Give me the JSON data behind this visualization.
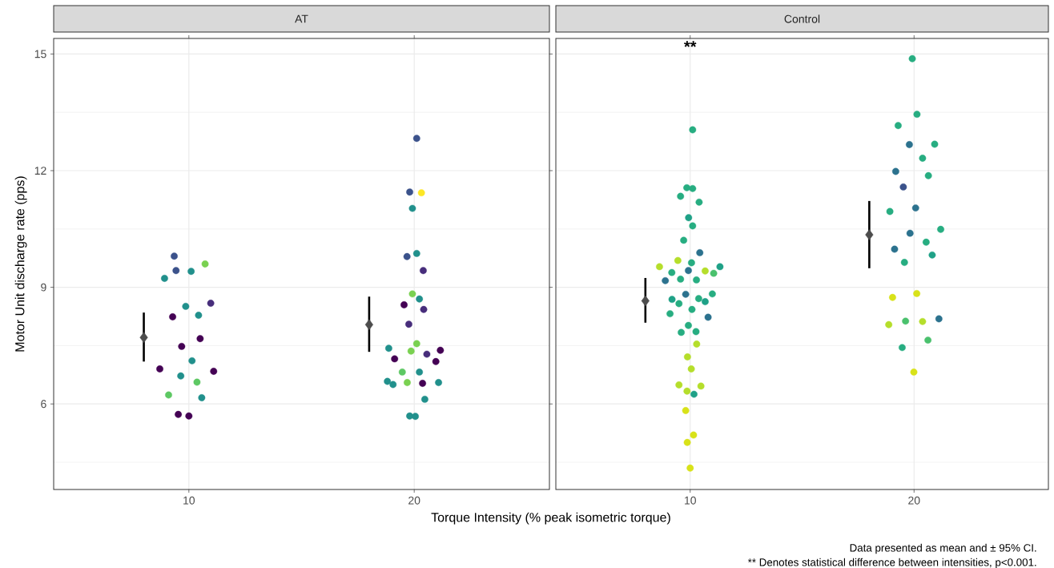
{
  "chart_data": [
    {
      "type": "scatter",
      "title": "AT",
      "ylabel": "Motor Unit discharge rate (pps)",
      "xlabel": "Torque Intensity (% peak isometric torque)",
      "xlim": [
        4,
        26
      ],
      "xticks": [
        10,
        20
      ],
      "ylim": [
        3.8,
        15.4
      ],
      "yticks": [
        6,
        9,
        12,
        15
      ],
      "grid": true,
      "series": [
        {
          "marker": "circle",
          "x": [
            9.35,
            9.43,
            8.92,
            10.1,
            10.72,
            9.86,
            10.97,
            9.28,
            10.43,
            10.5,
            9.68,
            10.14,
            8.71,
            11.1,
            9.64,
            10.36,
            9.1,
            10.57,
            9.53,
            10.0,
            20.11,
            19.8,
            20.32,
            19.92,
            20.11,
            19.68,
            20.4,
            19.92,
            20.23,
            19.55,
            20.42,
            19.76,
            20.11,
            18.87,
            19.86,
            21.16,
            20.56,
            19.13,
            20.96,
            19.47,
            20.23,
            18.81,
            19.06,
            19.69,
            20.37,
            21.08,
            20.47,
            19.8,
            20.05
          ],
          "values": [
            9.8,
            9.43,
            9.23,
            9.41,
            9.6,
            8.51,
            8.59,
            8.24,
            8.28,
            7.68,
            7.48,
            7.11,
            6.9,
            6.84,
            6.72,
            6.56,
            6.23,
            6.16,
            5.73,
            5.69,
            12.83,
            11.45,
            11.43,
            11.03,
            9.87,
            9.79,
            9.43,
            8.83,
            8.7,
            8.55,
            8.43,
            8.05,
            7.55,
            7.43,
            7.36,
            7.38,
            7.28,
            7.16,
            7.09,
            6.82,
            6.82,
            6.58,
            6.5,
            6.55,
            6.53,
            6.55,
            6.12,
            5.69,
            5.68
          ],
          "colors": [
            "#3b528b",
            "#3b528b",
            "#21908c",
            "#21908c",
            "#7ad151",
            "#21908c",
            "#472d7b",
            "#440154",
            "#21908c",
            "#440154",
            "#440154",
            "#21908c",
            "#440154",
            "#440154",
            "#21908c",
            "#5dc863",
            "#5dc863",
            "#21908c",
            "#440154",
            "#440154",
            "#3b528b",
            "#3b528b",
            "#fde725",
            "#21908c",
            "#21908c",
            "#3b528b",
            "#472d7b",
            "#7ad151",
            "#21908c",
            "#440154",
            "#472d7b",
            "#472d7b",
            "#7ad151",
            "#21908c",
            "#7ad151",
            "#440154",
            "#472d7b",
            "#440154",
            "#440154",
            "#5dc863",
            "#21908c",
            "#21908c",
            "#21908c",
            "#7ad151",
            "#440154",
            "#21908c",
            "#21908c",
            "#21908c",
            "#21908c"
          ]
        },
        {
          "x": [
            8,
            18
          ],
          "values": [
            7.71,
            8.04
          ],
          "marker": "diamond",
          "color": "#4d4d4d",
          "errors": [
            [
              7.09,
              8.35
            ],
            [
              7.34,
              8.76
            ]
          ]
        }
      ]
    },
    {
      "type": "scatter",
      "title": "Control",
      "xlim": [
        4,
        26
      ],
      "xticks": [
        10,
        20
      ],
      "ylim": [
        3.8,
        15.4
      ],
      "yticks": [
        6,
        9,
        12,
        15
      ],
      "grid": true,
      "tick_labels": "x",
      "annotations": [
        "**",
        "Data presented as mean and ± 95% CI.",
        "** Denotes statistical difference between intensities, p<0.001."
      ],
      "series": [
        {
          "marker": "circle",
          "x": [
            10.11,
            9.85,
            10.11,
            9.57,
            10.4,
            9.93,
            10.11,
            9.71,
            10.43,
            9.45,
            10.06,
            8.63,
            11.33,
            9.92,
            10.67,
            9.18,
            11.05,
            8.89,
            9.57,
            10.28,
            9.8,
            10.99,
            9.19,
            10.38,
            9.5,
            10.67,
            9.1,
            10.08,
            10.8,
            9.92,
            9.6,
            10.26,
            10.29,
            9.88,
            10.05,
            9.5,
            10.48,
            9.86,
            10.17,
            9.8,
            10.15,
            9.87,
            10.0,
            19.92,
            20.13,
            19.29,
            19.79,
            20.92,
            20.38,
            19.18,
            20.64,
            19.52,
            18.92,
            20.07,
            21.19,
            19.82,
            20.54,
            19.13,
            20.81,
            19.57,
            20.12,
            19.04,
            19.62,
            20.38,
            21.11,
            18.87,
            20.62,
            19.47,
            19.99
          ],
          "values": [
            13.05,
            11.56,
            11.54,
            11.34,
            11.19,
            10.79,
            10.58,
            10.21,
            9.89,
            9.69,
            9.63,
            9.53,
            9.53,
            9.43,
            9.42,
            9.38,
            9.36,
            9.17,
            9.21,
            9.19,
            8.82,
            8.83,
            8.69,
            8.71,
            8.58,
            8.63,
            8.32,
            8.43,
            8.23,
            8.02,
            7.84,
            7.86,
            7.54,
            7.21,
            6.9,
            6.49,
            6.46,
            6.33,
            6.25,
            5.83,
            5.2,
            5.01,
            4.35,
            14.88,
            13.45,
            13.16,
            12.67,
            12.68,
            12.32,
            11.98,
            11.87,
            11.58,
            10.95,
            11.04,
            10.49,
            10.39,
            10.16,
            9.98,
            9.83,
            9.64,
            8.84,
            8.74,
            8.13,
            8.12,
            8.19,
            8.04,
            7.64,
            7.45,
            6.82
          ],
          "colors": [
            "#27ad81",
            "#27ad81",
            "#27ad81",
            "#27ad81",
            "#27ad81",
            "#1fa187",
            "#27ad81",
            "#27ad81",
            "#2c728e",
            "#b5de2b",
            "#27ad81",
            "#b5de2b",
            "#1fa187",
            "#2c728e",
            "#b5de2b",
            "#27ad81",
            "#4ac16d",
            "#2c728e",
            "#27ad81",
            "#27ad81",
            "#2c728e",
            "#27ad81",
            "#1fa187",
            "#27ad81",
            "#27ad81",
            "#1fa187",
            "#27ad81",
            "#27ad81",
            "#2c728e",
            "#27ad81",
            "#27ad81",
            "#27ad81",
            "#b5de2b",
            "#b5de2b",
            "#b5de2b",
            "#b5de2b",
            "#b5de2b",
            "#b5de2b",
            "#1fa187",
            "#d8e219",
            "#d8e219",
            "#d8e219",
            "#d8e219",
            "#27ad81",
            "#27ad81",
            "#27ad81",
            "#2c728e",
            "#27ad81",
            "#27ad81",
            "#2c728e",
            "#27ad81",
            "#3b528b",
            "#27ad81",
            "#2c728e",
            "#27ad81",
            "#2c728e",
            "#27ad81",
            "#2c728e",
            "#1fa187",
            "#27ad81",
            "#d8e219",
            "#d8e219",
            "#4ac16d",
            "#b5de2b",
            "#2c728e",
            "#b5de2b",
            "#4ac16d",
            "#27ad81",
            "#d8e219"
          ]
        },
        {
          "x": [
            8,
            18
          ],
          "values": [
            8.65,
            10.35
          ],
          "marker": "diamond",
          "color": "#4d4d4d",
          "errors": [
            [
              8.09,
              9.24
            ],
            [
              9.49,
              11.22
            ]
          ]
        }
      ]
    }
  ]
}
